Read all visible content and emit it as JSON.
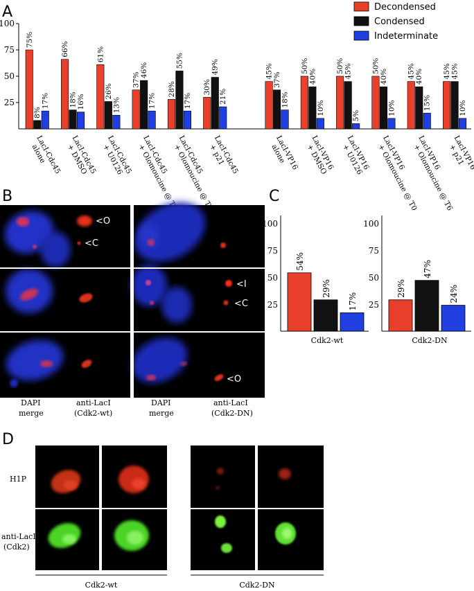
{
  "panels": {
    "A": "A",
    "B": "B",
    "C": "C",
    "D": "D"
  },
  "colors": {
    "decondensed": "#e8402a",
    "condensed": "#111111",
    "indeterminate": "#1f3fe0"
  },
  "chart_data": [
    {
      "type": "bar",
      "panel": "A",
      "ylim": [
        0,
        100
      ],
      "yticks": [
        25,
        50,
        75,
        100
      ],
      "legend": [
        "Decondensed",
        "Condensed",
        "Indeterminate"
      ],
      "legend_position": "top-right",
      "categories": [
        [
          "LacI-Cdc45",
          "alone"
        ],
        [
          "LacI-Cdc45",
          "+ DMSO"
        ],
        [
          "LacI-Cdc45",
          "+ U0126"
        ],
        [
          "LacI-Cdc45",
          "+ Olomoucine @ T0"
        ],
        [
          "LacI-Cdc45",
          "+ Olomoucine @ T6"
        ],
        [
          "LacI-Cdc45",
          "+ p21"
        ],
        [
          "LacI-VP16",
          "alone"
        ],
        [
          "LacI-VP16",
          "+ DMSO"
        ],
        [
          "LacI-VP16",
          "+ U0126"
        ],
        [
          "LacI-VP16",
          "+ Olomoucine @ T0"
        ],
        [
          "LacI-VP16",
          "+ Olomoucine @ T6"
        ],
        [
          "LacI-VP16",
          "+ p21"
        ]
      ],
      "series": [
        {
          "name": "Decondensed",
          "values": [
            75,
            66,
            61,
            37,
            28,
            30,
            45,
            50,
            50,
            50,
            45,
            45
          ],
          "labels": [
            "75%",
            "66%",
            "61%",
            "37%",
            "28%",
            "30%",
            "45%",
            "50%",
            "50%",
            "50%",
            "45%",
            "45%"
          ]
        },
        {
          "name": "Condensed",
          "values": [
            8,
            18,
            26,
            46,
            55,
            49,
            37,
            40,
            45,
            40,
            40,
            45
          ],
          "labels": [
            "8%",
            "18%",
            "26%",
            "46%",
            "55%",
            "49%",
            "37%",
            "40%",
            "45%",
            "40%",
            "40%",
            "45%"
          ]
        },
        {
          "name": "Indeterminate",
          "values": [
            17,
            16,
            13,
            17,
            17,
            21,
            18,
            10,
            5,
            10,
            15,
            10
          ],
          "labels": [
            "17%",
            "16%",
            "13%",
            "17%",
            "17%",
            "21%",
            "18%",
            "10%",
            "5%",
            "10%",
            "15%",
            "10%"
          ]
        }
      ]
    },
    {
      "type": "bar",
      "panel": "C",
      "ylim": [
        0,
        100
      ],
      "yticks": [
        25,
        50,
        75,
        100
      ],
      "xlabel": "Cdk2-wt",
      "categories": [
        "Decondensed",
        "Condensed",
        "Indeterminate"
      ],
      "values": [
        54,
        29,
        17
      ],
      "labels": [
        "54%",
        "29%",
        "17%"
      ]
    },
    {
      "type": "bar",
      "panel": "C",
      "ylim": [
        0,
        100
      ],
      "yticks": [
        25,
        50,
        75,
        100
      ],
      "xlabel": "Cdk2-DN",
      "categories": [
        "Decondensed",
        "Condensed",
        "Indeterminate"
      ],
      "values": [
        29,
        47,
        24
      ],
      "labels": [
        "29%",
        "47%",
        "24%"
      ]
    }
  ],
  "panelB": {
    "markers": {
      "o": "<O",
      "c": "<C",
      "i": "<I"
    },
    "captions": {
      "dapi1_a": "DAPI",
      "dapi1_b": "merge",
      "anti1_a": "anti-LacI",
      "anti1_b": "(Cdk2-wt)",
      "dapi2_a": "DAPI",
      "dapi2_b": "merge",
      "anti2_a": "anti-LacI",
      "anti2_b": "(Cdk2-DN)"
    }
  },
  "panelD": {
    "row1": "H1P",
    "row2a": "anti-LacI",
    "row2b": "(Cdk2)",
    "group1": "Cdk2-wt",
    "group2": "Cdk2-DN"
  }
}
